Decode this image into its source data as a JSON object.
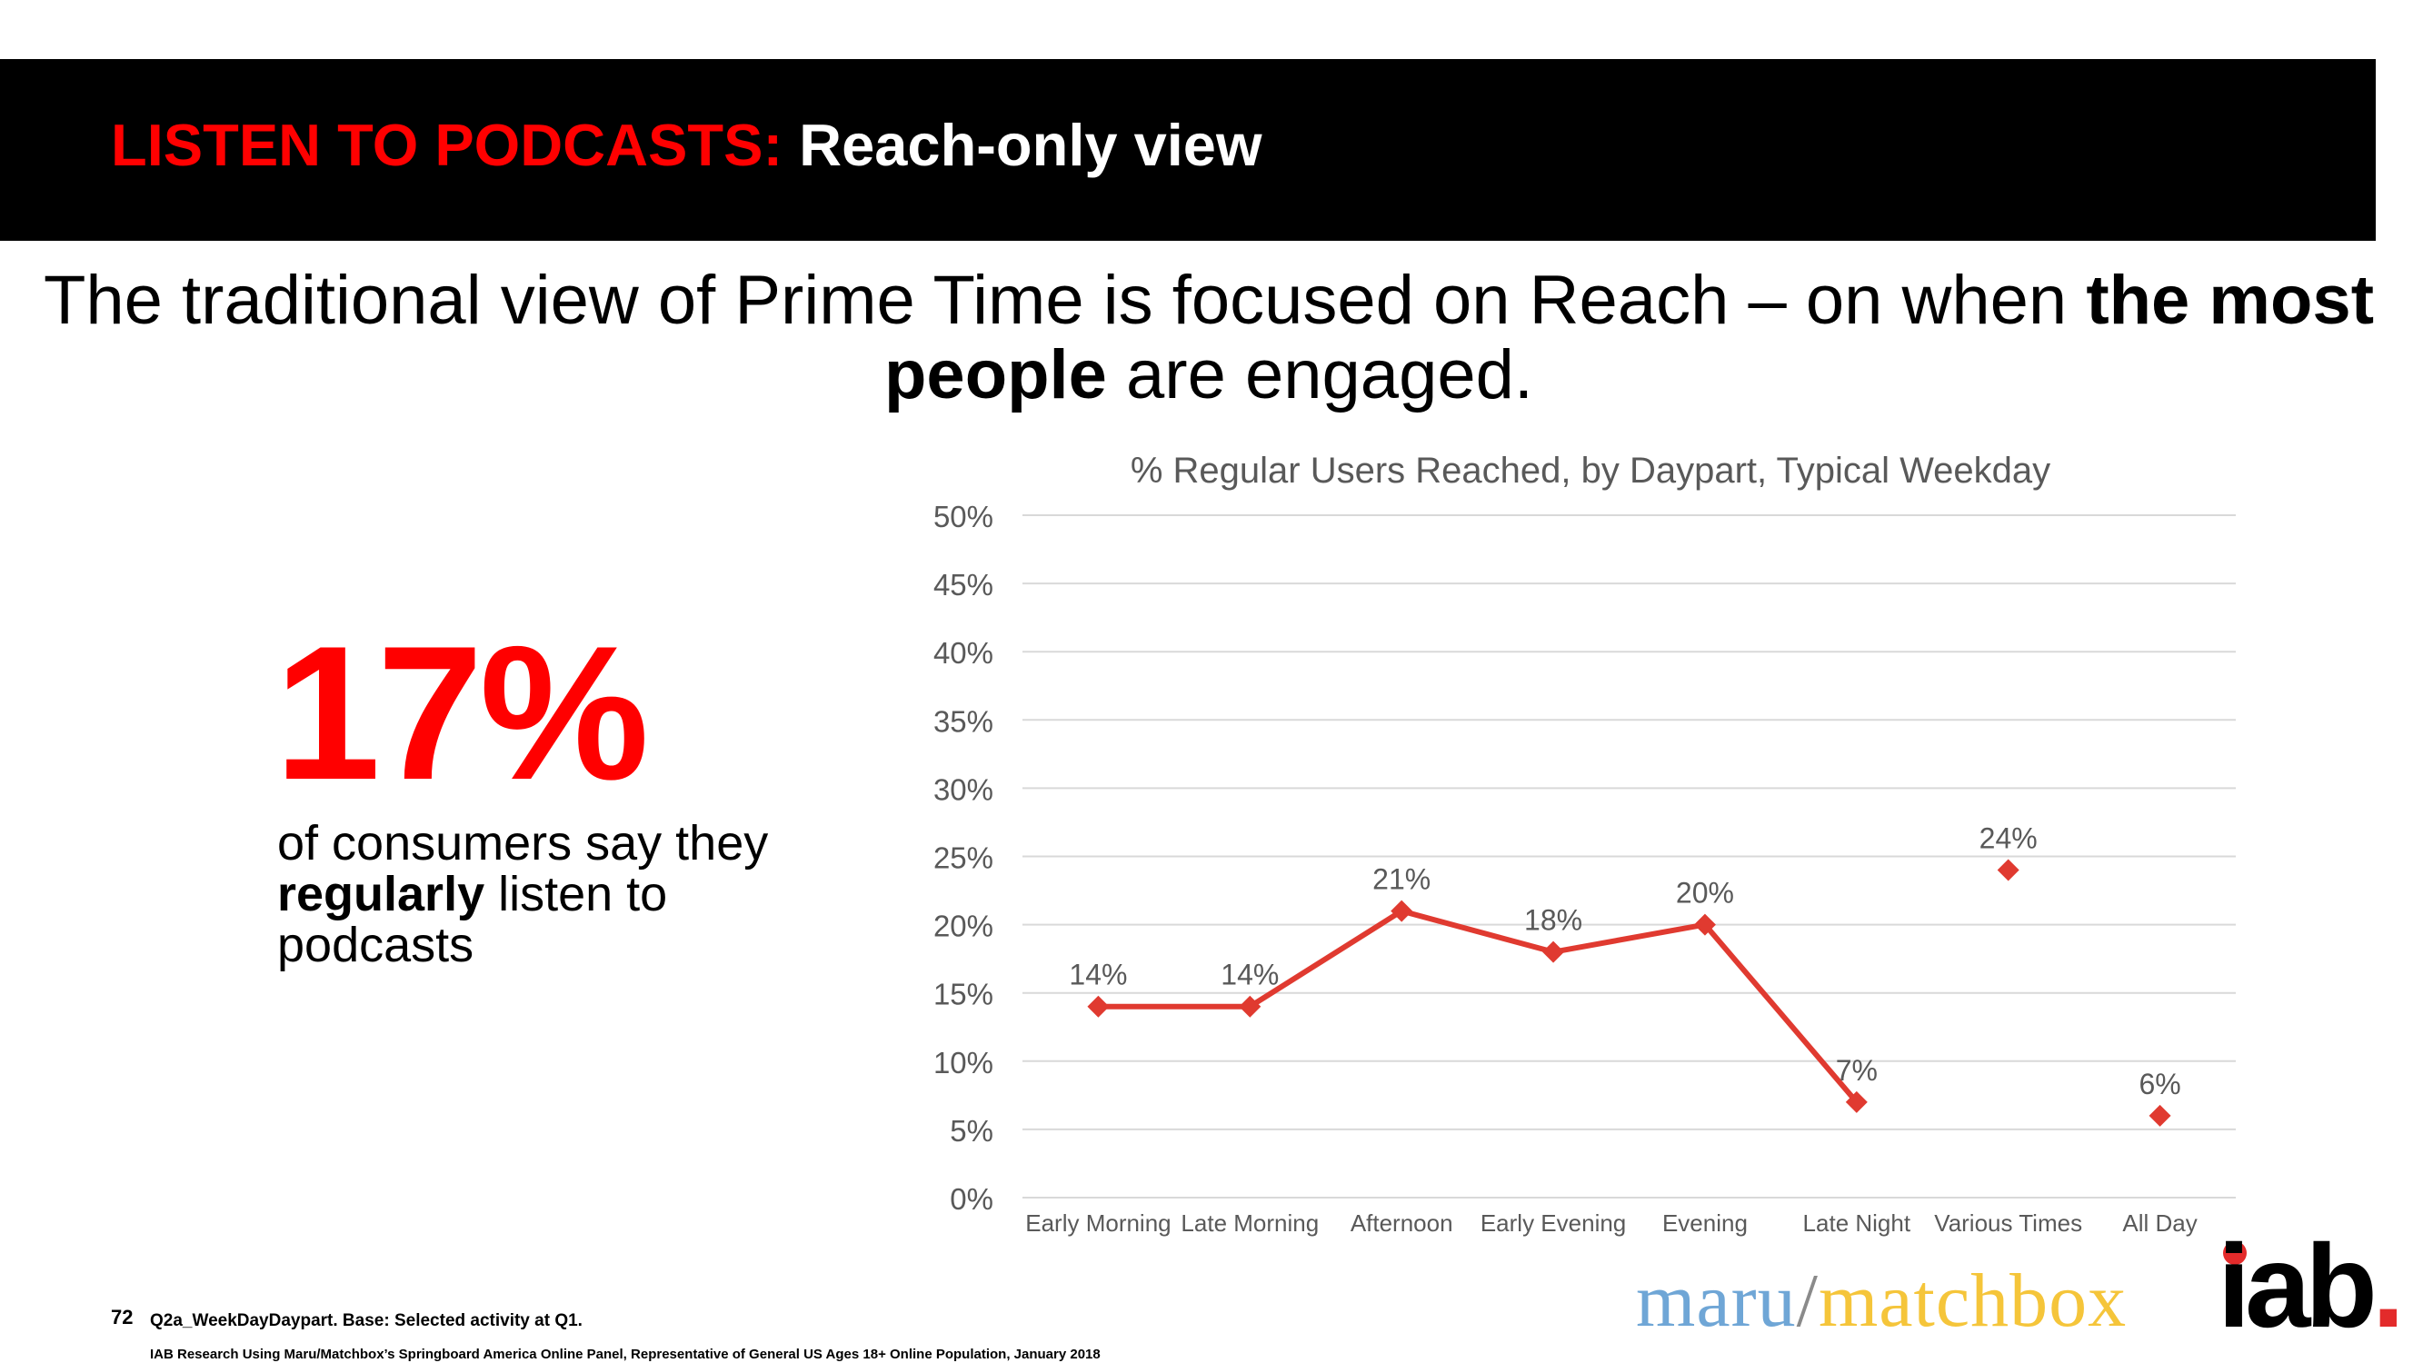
{
  "header": {
    "title_red": "LISTEN TO PODCASTS:",
    "title_white": " Reach-only view"
  },
  "headline": {
    "part1": "The traditional view of Prime Time is focused on Reach – on when ",
    "bold1": "the most people",
    "part2": " are engaged."
  },
  "stat": {
    "value": "17%",
    "text_part1": "of consumers say they ",
    "text_bold": "regularly",
    "text_part2": " listen to podcasts"
  },
  "chart_data": {
    "type": "line",
    "title": "% Regular Users Reached, by Daypart, Typical Weekday",
    "categories": [
      "Early Morning",
      "Late Morning",
      "Afternoon",
      "Early Evening",
      "Evening",
      "Late Night",
      "Various Times",
      "All Day"
    ],
    "values": [
      14,
      14,
      21,
      18,
      20,
      7,
      24,
      6
    ],
    "data_labels": [
      "14%",
      "14%",
      "21%",
      "18%",
      "20%",
      "7%",
      "24%",
      "6%"
    ],
    "connected_through_index": 5,
    "y_ticks": [
      "0%",
      "5%",
      "10%",
      "15%",
      "20%",
      "25%",
      "30%",
      "35%",
      "40%",
      "45%",
      "50%"
    ],
    "ylim": [
      0,
      50
    ],
    "grid": true,
    "marker": "diamond",
    "color": "#e03a30"
  },
  "footnote": {
    "page_number": "72",
    "line1": "Q2a_WeekDayDaypart. Base: Selected activity at Q1.",
    "line2": "IAB Research Using Maru/Matchbox’s Springboard America Online Panel, Representative of General US Ages 18+ Online Population, January 2018"
  },
  "logos": {
    "maru": "maru",
    "slash": "/",
    "matchbox": "matchbox",
    "iab": "iab",
    "iab_dot": "."
  }
}
